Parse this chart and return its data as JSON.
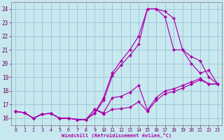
{
  "xlabel": "Windchill (Refroidissement éolien,°C)",
  "bg_color": "#c8e8f0",
  "grid_color": "#a0c8d8",
  "line_color": "#aa00aa",
  "xmin": -0.5,
  "xmax": 23.5,
  "ymin": 15.5,
  "ymax": 24.5,
  "yticks": [
    16,
    17,
    18,
    19,
    20,
    21,
    22,
    23,
    24
  ],
  "xticks": [
    0,
    1,
    2,
    3,
    4,
    5,
    6,
    7,
    8,
    9,
    10,
    11,
    12,
    13,
    14,
    15,
    16,
    17,
    18,
    19,
    20,
    21,
    22,
    23
  ],
  "lines": [
    {
      "x": [
        0,
        1,
        2,
        3,
        4,
        5,
        6,
        7,
        8,
        9,
        10,
        11,
        12,
        13,
        14,
        15,
        16,
        17,
        18,
        19,
        20,
        21,
        22,
        23
      ],
      "y": [
        16.5,
        16.4,
        16.0,
        16.3,
        16.35,
        16.0,
        16.0,
        15.9,
        15.9,
        16.4,
        17.5,
        19.3,
        20.2,
        21.0,
        22.0,
        24.0,
        24.0,
        23.8,
        23.3,
        21.0,
        20.0,
        19.3,
        19.5,
        18.5
      ]
    },
    {
      "x": [
        0,
        1,
        2,
        3,
        4,
        5,
        6,
        7,
        8,
        9,
        10,
        11,
        12,
        13,
        14,
        15,
        16,
        17,
        18,
        19,
        20,
        21,
        22,
        23
      ],
      "y": [
        16.5,
        16.4,
        16.0,
        16.3,
        16.35,
        16.0,
        16.0,
        15.9,
        15.9,
        16.35,
        17.3,
        19.1,
        19.9,
        20.6,
        21.4,
        24.0,
        24.0,
        23.4,
        21.0,
        21.0,
        20.5,
        20.2,
        19.0,
        18.5
      ]
    },
    {
      "x": [
        0,
        1,
        2,
        3,
        4,
        5,
        6,
        7,
        8,
        9,
        10,
        11,
        12,
        13,
        14,
        15,
        16,
        17,
        18,
        19,
        20,
        21,
        22,
        23
      ],
      "y": [
        16.5,
        16.4,
        16.0,
        16.3,
        16.35,
        16.0,
        16.0,
        15.9,
        15.9,
        16.65,
        16.4,
        17.5,
        17.6,
        17.9,
        18.4,
        16.6,
        17.5,
        18.0,
        18.15,
        18.4,
        18.65,
        18.9,
        18.5,
        18.5
      ]
    },
    {
      "x": [
        0,
        1,
        2,
        3,
        4,
        5,
        6,
        7,
        8,
        9,
        10,
        11,
        12,
        13,
        14,
        15,
        16,
        17,
        18,
        19,
        20,
        21,
        22,
        23
      ],
      "y": [
        16.5,
        16.4,
        16.0,
        16.3,
        16.35,
        16.0,
        16.0,
        15.9,
        15.9,
        16.65,
        16.3,
        16.65,
        16.7,
        16.8,
        17.2,
        16.5,
        17.3,
        17.8,
        17.95,
        18.2,
        18.5,
        18.8,
        18.5,
        18.5
      ]
    }
  ]
}
